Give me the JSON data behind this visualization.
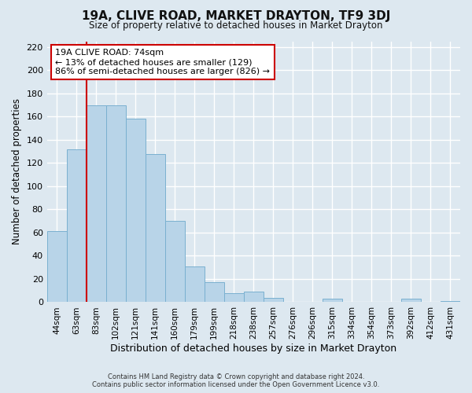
{
  "title": "19A, CLIVE ROAD, MARKET DRAYTON, TF9 3DJ",
  "subtitle": "Size of property relative to detached houses in Market Drayton",
  "xlabel": "Distribution of detached houses by size in Market Drayton",
  "ylabel": "Number of detached properties",
  "footer_line1": "Contains HM Land Registry data © Crown copyright and database right 2024.",
  "footer_line2": "Contains public sector information licensed under the Open Government Licence v3.0.",
  "bin_labels": [
    "44sqm",
    "63sqm",
    "83sqm",
    "102sqm",
    "121sqm",
    "141sqm",
    "160sqm",
    "179sqm",
    "199sqm",
    "218sqm",
    "238sqm",
    "257sqm",
    "276sqm",
    "296sqm",
    "315sqm",
    "334sqm",
    "354sqm",
    "373sqm",
    "392sqm",
    "412sqm",
    "431sqm"
  ],
  "bar_values": [
    61,
    132,
    170,
    170,
    158,
    128,
    70,
    31,
    17,
    8,
    9,
    4,
    0,
    0,
    3,
    0,
    0,
    0,
    3,
    0,
    1
  ],
  "bar_color": "#b8d4e8",
  "bar_edge_color": "#7ab0d0",
  "vline_x": 1.5,
  "vline_color": "#cc0000",
  "annotation_title": "19A CLIVE ROAD: 74sqm",
  "annotation_line1": "← 13% of detached houses are smaller (129)",
  "annotation_line2": "86% of semi-detached houses are larger (826) →",
  "annotation_box_color": "#ffffff",
  "annotation_box_edge": "#cc0000",
  "ylim": [
    0,
    225
  ],
  "yticks": [
    0,
    20,
    40,
    60,
    80,
    100,
    120,
    140,
    160,
    180,
    200,
    220
  ],
  "background_color": "#dde8f0",
  "plot_bg_color": "#dde8f0",
  "grid_color": "#ffffff",
  "title_fontsize": 11,
  "subtitle_fontsize": 8.5
}
